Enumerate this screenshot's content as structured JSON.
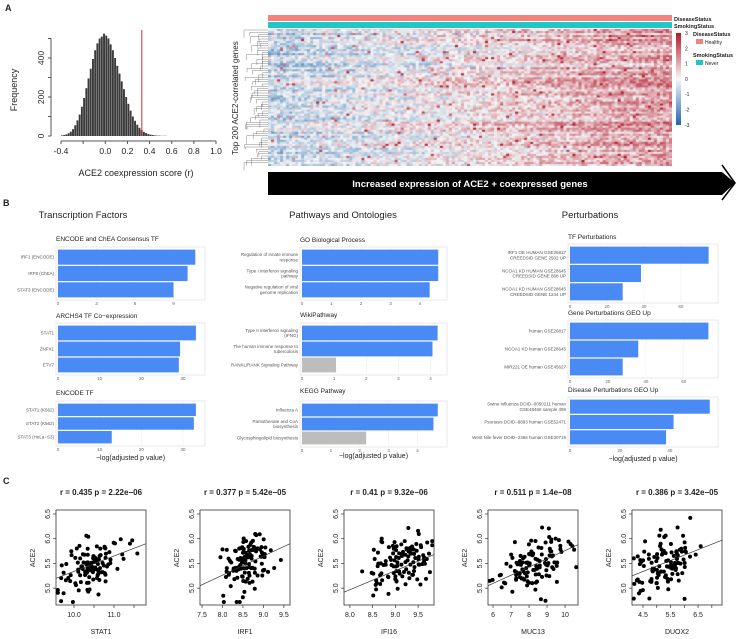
{
  "panel_labels": {
    "a": "A",
    "b": "B",
    "c": "C"
  },
  "colors": {
    "bar_significant": "#4a8af4",
    "bar_nonsignificant": "#bdbdbd",
    "threshold_line": "#d62b3a",
    "healthy": "#f4837d",
    "never": "#1fc7c7",
    "heat_low": "#2166ac",
    "heat_mid": "#f7f7f7",
    "heat_high": "#b2182b"
  },
  "chart_data": [
    {
      "type": "bar",
      "subtype": "histogram",
      "xlabel": "ACE2 coexpression score (r)",
      "ylabel": "Frequency",
      "xlim": [
        -0.4,
        1.0
      ],
      "ylim": [
        0,
        530
      ],
      "xticks": [
        -0.4,
        -0.2,
        0.0,
        0.2,
        0.4,
        0.6,
        0.8,
        1.0
      ],
      "xtick_labels": [
        "-0.4",
        "",
        "0.0",
        "0.2",
        "0.4",
        "0.6",
        "0.8",
        "1.0"
      ],
      "yticks": [
        0,
        100,
        200,
        300,
        400,
        500
      ],
      "ytick_labels": [
        "0",
        "",
        "200",
        "",
        "400",
        ""
      ],
      "bin_width": 0.02,
      "bin_centers": [
        -0.39,
        -0.37,
        -0.35,
        -0.33,
        -0.31,
        -0.29,
        -0.27,
        -0.25,
        -0.23,
        -0.21,
        -0.19,
        -0.17,
        -0.15,
        -0.13,
        -0.11,
        -0.09,
        -0.07,
        -0.05,
        -0.03,
        -0.01,
        0.01,
        0.03,
        0.05,
        0.07,
        0.09,
        0.11,
        0.13,
        0.15,
        0.17,
        0.19,
        0.21,
        0.23,
        0.25,
        0.27,
        0.29,
        0.31,
        0.33,
        0.35,
        0.37,
        0.39,
        0.41,
        0.43,
        0.45,
        0.47,
        0.49,
        0.51,
        0.53,
        0.55,
        0.57,
        0.59
      ],
      "values": [
        3,
        5,
        8,
        14,
        22,
        35,
        55,
        80,
        110,
        150,
        195,
        245,
        295,
        345,
        395,
        440,
        475,
        500,
        510,
        525,
        515,
        500,
        470,
        440,
        400,
        360,
        320,
        280,
        240,
        200,
        165,
        130,
        100,
        78,
        58,
        42,
        30,
        21,
        15,
        10,
        7,
        5,
        3,
        2,
        2,
        1,
        1,
        1,
        0,
        0
      ],
      "threshold": 0.33
    },
    {
      "type": "heatmap",
      "ylabel": "Top 200 ACE2-correlated genes",
      "annotation_rows": [
        {
          "label": "DiseaseStatus",
          "legend_title": "DiseaseStatus",
          "level": "Healthy",
          "color": "#f4837d"
        },
        {
          "label": "SmokingStatus",
          "legend_title": "SmokingStatus",
          "level": "Never",
          "color": "#1fc7c7"
        }
      ],
      "color_scale": {
        "range": [
          -3,
          3
        ],
        "ticks": [
          "3",
          "2",
          "1",
          "0",
          "-1",
          "-2",
          "-3"
        ]
      },
      "banner": "Increased expression of ACE2 + coexpressed genes"
    },
    {
      "type": "bar",
      "orientation": "horizontal",
      "xlabel": "−log(adjusted p value)",
      "columns": [
        {
          "title": "Transcription Factors",
          "subplots": [
            {
              "title": "ENCODE and ChEA Consensus TF",
              "xlim": [
                0,
                11.3
              ],
              "xticks": [
                0,
                3,
                6,
                9
              ],
              "bars": [
                {
                  "label": "IRF1 (ENCODE)",
                  "value": 10.7,
                  "significant": true
                },
                {
                  "label": "IRF8 (ChEA)",
                  "value": 10.1,
                  "significant": true
                },
                {
                  "label": "STAT3 (ENCODE)",
                  "value": 9.0,
                  "significant": true
                }
              ]
            },
            {
              "title": "ARCHS4 TF Co−expression",
              "xlim": [
                0,
                34.8
              ],
              "xticks": [
                0,
                10,
                20,
                30
              ],
              "bars": [
                {
                  "label": "STAT1",
                  "value": 33.1,
                  "significant": true
                },
                {
                  "label": "ZNFX1",
                  "value": 29.3,
                  "significant": true
                },
                {
                  "label": "ETV7",
                  "value": 29.0,
                  "significant": true
                }
              ]
            },
            {
              "title": "ENCODE TF",
              "xlim": [
                0,
                34.8
              ],
              "xticks": [
                0,
                10,
                20,
                30
              ],
              "bars": [
                {
                  "label": "STAT1 (K562)",
                  "value": 33.1,
                  "significant": true
                },
                {
                  "label": "STAT2 (K562)",
                  "value": 32.6,
                  "significant": true
                },
                {
                  "label": "STAT3 (HeLa−S3)",
                  "value": 12.9,
                  "significant": true
                }
              ]
            }
          ]
        },
        {
          "title": "Pathways and Ontologies",
          "subplots": [
            {
              "title": "GO Biological Process",
              "xlim": [
                0,
                4.85
              ],
              "xticks": [
                0,
                1,
                2,
                3,
                4
              ],
              "bars": [
                {
                  "label": "Regulation of innate immune\nresponse",
                  "value": 4.62,
                  "significant": true
                },
                {
                  "label": "Type I interferon signaling\npathway",
                  "value": 4.62,
                  "significant": true
                },
                {
                  "label": "Negative regulation of viral\ngenome replication",
                  "value": 4.33,
                  "significant": true
                }
              ]
            },
            {
              "title": "WikiPathway",
              "xlim": [
                0,
                4.45
              ],
              "xticks": [
                0,
                1,
                2,
                3,
                4
              ],
              "bars": [
                {
                  "label": "Type II interferon signaling\n(IFNG)",
                  "value": 4.22,
                  "significant": true
                },
                {
                  "label": "The human immune response to\ntuberculosis",
                  "value": 4.06,
                  "significant": true
                },
                {
                  "label": "RANKL/RANK Signaling Pathway",
                  "value": 1.06,
                  "significant": false
                }
              ]
            },
            {
              "title": "KEGG Pathway",
              "xlim": [
                0,
                4.95
              ],
              "xticks": [
                0,
                1,
                2,
                3,
                4
              ],
              "bars": [
                {
                  "label": "Influenza A",
                  "value": 4.7,
                  "significant": true
                },
                {
                  "label": "Pantothenate and CoA\nbiosynthesis",
                  "value": 4.55,
                  "significant": true
                },
                {
                  "label": "Glycosphingolipid biosynthesis",
                  "value": 2.22,
                  "significant": false
                }
              ]
            }
          ]
        },
        {
          "title": "Perturbations",
          "subplots": [
            {
              "title": "TF Perturbations",
              "xlim": [
                0,
                79
              ],
              "xticks": [
                0,
                20,
                40,
                60
              ],
              "bars": [
                {
                  "label": "IRF1 OE HUMAN GSE26817\nCREEDSID GENE 2502 UP",
                  "value": 75,
                  "significant": true
                },
                {
                  "label": "NCOA1 KD HUMAN GSE28645\nCREEDSID GENE 868 UP",
                  "value": 38.4,
                  "significant": true
                },
                {
                  "label": "NCOA1 KD HUMAN GSE28645\nCREEDSID GENE 1244 UP",
                  "value": 28.5,
                  "significant": true
                }
              ]
            },
            {
              "title": "Gene Perturbations GEO Up",
              "xlim": [
                0,
                77
              ],
              "xticks": [
                0,
                20,
                40,
                60
              ],
              "bars": [
                {
                  "label": "human GSE26817",
                  "value": 73,
                  "significant": true
                },
                {
                  "label": "NCOA1 KD human GSE28645",
                  "value": 36,
                  "significant": true
                },
                {
                  "label": "MIR221 OE human GSE45627",
                  "value": 27.8,
                  "significant": true
                }
              ]
            },
            {
              "title": "Disease Perturbations GEO Up",
              "xlim": [
                0,
                58.5
              ],
              "xticks": [
                0,
                20,
                40
              ],
              "bars": [
                {
                  "label": "Swine influenza DOID−0050211 human\nGSE48466 sample 498",
                  "value": 56,
                  "significant": true
                },
                {
                  "label": "Psoriasis DOID−8893 human GSE52471",
                  "value": 41.5,
                  "significant": true
                },
                {
                  "label": "West Nile fever DOID−2366 human GSE30719",
                  "value": 38.5,
                  "significant": true
                }
              ]
            }
          ]
        }
      ]
    },
    {
      "type": "scatter",
      "ylabel": "ACE2",
      "ylim": [
        4.66,
        6.58
      ],
      "yticks": [
        "5.0",
        "5.5",
        "6.0",
        "6.5"
      ],
      "plots": [
        {
          "title": "r =  0.435  p =  2.22e−06",
          "xlabel": "STAT1",
          "xlim": [
            9.55,
            11.8
          ],
          "xticks": [
            "10.0",
            "10.5",
            "11.0",
            "11.5"
          ],
          "xtick_labels": [
            "10.0",
            "",
            "11.0",
            ""
          ],
          "r": 0.435,
          "p": "2.22e-06",
          "fit": [
            [
              9.55,
              5.2
            ],
            [
              11.8,
              5.9
            ]
          ]
        },
        {
          "title": "r =  0.377  p =  5.42e−05",
          "xlabel": "IRF1",
          "xlim": [
            7.45,
            9.65
          ],
          "xticks": [
            "7.5",
            "8.0",
            "8.5",
            "9.0",
            "9.5"
          ],
          "xtick_labels": [
            "7.5",
            "8.0",
            "8.5",
            "9.0",
            "9.5"
          ],
          "r": 0.377,
          "p": "5.42e-05",
          "fit": [
            [
              7.45,
              5.05
            ],
            [
              9.65,
              5.9
            ]
          ]
        },
        {
          "title": "r =  0.41  p =  9.32e−06",
          "xlabel": "IFI16",
          "xlim": [
            7.87,
            9.85
          ],
          "xticks": [
            "8.0",
            "8.5",
            "9.0",
            "9.5"
          ],
          "xtick_labels": [
            "8.0",
            "8.5",
            "9.0",
            "9.5"
          ],
          "r": 0.41,
          "p": "9.32e-06",
          "fit": [
            [
              7.87,
              4.92
            ],
            [
              9.85,
              5.68
            ]
          ]
        },
        {
          "title": "r =  0.511  p =  1.4e−08",
          "xlabel": "MUC13",
          "xlim": [
            5.72,
            10.72
          ],
          "xticks": [
            "6",
            "7",
            "8",
            "9",
            "10"
          ],
          "xtick_labels": [
            "6",
            "7",
            "8",
            "9",
            "10"
          ],
          "r": 0.511,
          "p": "1.4e-08",
          "fit": [
            [
              5.72,
              5.05
            ],
            [
              10.72,
              5.88
            ]
          ]
        },
        {
          "title": "r =  0.386  p =  3.42e−05",
          "xlabel": "DUOX2",
          "xlim": [
            4.1,
            7.37
          ],
          "xticks": [
            "4.5",
            "5.0",
            "5.5",
            "6.0",
            "6.5",
            "7.0"
          ],
          "xtick_labels": [
            "4.5",
            "",
            "5.5",
            "",
            "6.5",
            ""
          ],
          "r": 0.386,
          "p": "3.42e-05",
          "fit": [
            [
              4.1,
              5.25
            ],
            [
              7.37,
              5.97
            ]
          ]
        }
      ]
    }
  ]
}
